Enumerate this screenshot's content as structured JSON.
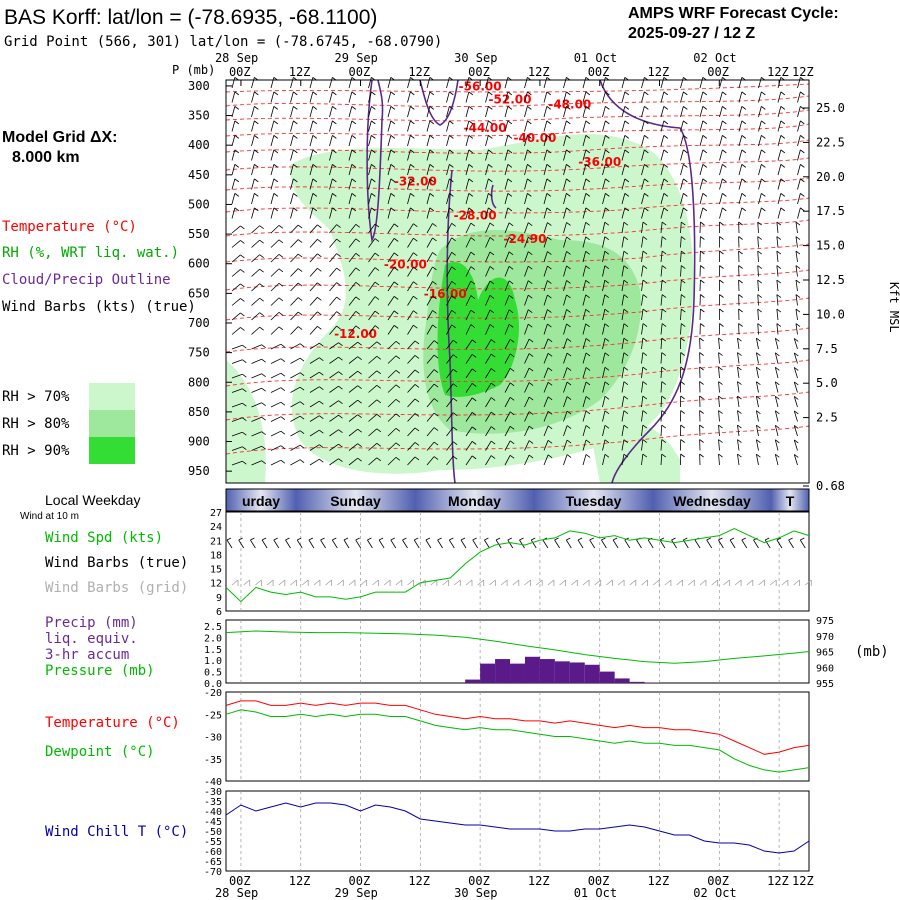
{
  "header": {
    "station_title": "BAS Korff:  lat/lon = (-78.6935, -68.1100)",
    "grid_point": "Grid Point (566, 301) lat/lon = (-78.6745, -68.0790)",
    "forecast_label": "AMPS WRF Forecast Cycle:",
    "forecast_cycle": "2025-09-27 / 12  Z",
    "model_grid_line1": "Model Grid ΔX:",
    "model_grid_line2": "8.000 km"
  },
  "legend": {
    "temperature": "Temperature (°C)",
    "rh": "RH (%, WRT liq. wat.)",
    "cloud": "Cloud/Precip Outline",
    "wind": "Wind Barbs (kts) (true)",
    "rh70": "RH > 70%",
    "rh80": "RH > 80%",
    "rh90": "RH > 90%",
    "local_weekday": "Local Weekday",
    "wind_at_10m": "Wind at 10 m"
  },
  "colors": {
    "temperature": "#ff0000",
    "rh70": "#ccf7cc",
    "rh80": "#9de89d",
    "rh90": "#33dd33",
    "cloud_outline": "#5a2a8a",
    "wind_barb": "#000000",
    "wind_barb_grid": "#a0a0a0",
    "wind_speed": "#00bb00",
    "precip": "#5a1a8a",
    "pressure": "#00bb00",
    "dewpoint": "#00bb00",
    "wind_chill": "#0000aa"
  },
  "time_axis": {
    "top_dates": [
      "28 Sep",
      "29 Sep",
      "30 Sep",
      "01 Oct",
      "02 Oct"
    ],
    "ticks": [
      "00Z",
      "12Z",
      "00Z",
      "12Z",
      "00Z",
      "12Z",
      "00Z",
      "12Z",
      "00Z",
      "12Z"
    ],
    "weekdays": [
      "urday",
      "Sunday",
      "Monday",
      "Tuesday",
      "Wednesday",
      "T"
    ]
  },
  "chart_data": [
    {
      "type": "heatmap",
      "panel": "cross-section",
      "ylabel_left": "P (mb)",
      "ylabel_right": "Kft MSL",
      "pressure_ticks": [
        300,
        350,
        400,
        450,
        500,
        550,
        600,
        650,
        700,
        750,
        800,
        850,
        900,
        950
      ],
      "height_ticks": [
        "25.0",
        "22.5",
        "20.0",
        "17.5",
        "15.0",
        "12.5",
        "10.0",
        "7.5",
        "5.0",
        "2.5",
        "0.68"
      ],
      "temperature_labels": [
        {
          "text": "-56.00",
          "hour": 51,
          "p": 308
        },
        {
          "text": "-52.00",
          "hour": 57,
          "p": 330
        },
        {
          "text": "-48.00",
          "hour": 69,
          "p": 338
        },
        {
          "text": "-44.00",
          "hour": 52,
          "p": 378
        },
        {
          "text": "-40.00",
          "hour": 62,
          "p": 395
        },
        {
          "text": "-36.00",
          "hour": 75,
          "p": 435
        },
        {
          "text": "-32.00",
          "hour": 38,
          "p": 468
        },
        {
          "text": "-28.00",
          "hour": 50,
          "p": 525
        },
        {
          "text": "-24.90",
          "hour": 60,
          "p": 565
        },
        {
          "text": "-20.00",
          "hour": 36,
          "p": 608
        },
        {
          "text": "-16.00",
          "hour": 44,
          "p": 658
        },
        {
          "text": "-12.00",
          "hour": 26,
          "p": 725
        }
      ]
    },
    {
      "type": "line",
      "panel": "wind",
      "series_labels": [
        "Wind Spd (kts)",
        "Wind Barbs (true)",
        "Wind Barbs (grid)"
      ],
      "yticks": [
        6,
        9,
        12,
        15,
        18,
        21,
        24,
        27
      ],
      "ylim": [
        6,
        27
      ],
      "hours": [
        0,
        3,
        6,
        9,
        12,
        15,
        18,
        21,
        24,
        27,
        30,
        33,
        36,
        39,
        42,
        45,
        48,
        51,
        54,
        57,
        60,
        63,
        66,
        69,
        72,
        75,
        78,
        81,
        84,
        87,
        90,
        93,
        96,
        99,
        102,
        105,
        108,
        111,
        114,
        117
      ],
      "values": [
        11,
        8,
        11,
        10,
        9.5,
        10,
        9,
        9,
        8.5,
        9,
        10,
        10,
        10,
        12,
        12.5,
        13,
        16,
        18.5,
        20,
        20.5,
        20,
        21,
        21.5,
        23,
        22.5,
        21.5,
        22,
        21,
        21.5,
        21,
        20.5,
        21,
        21.5,
        22,
        23.5,
        22,
        20.5,
        21.5,
        23,
        22
      ]
    },
    {
      "type": "bar",
      "panel": "precip-pressure",
      "series_labels": [
        "Precip (mm)",
        "liq. equiv.",
        "3-hr accum",
        "Pressure (mb)"
      ],
      "y_left_ticks": [
        "0.0",
        "0.5",
        "1.0",
        "1.5",
        "2.0",
        "2.5"
      ],
      "y_right_ticks": [
        955,
        960,
        965,
        970,
        975
      ],
      "ylabel_right": "(mb)",
      "precip_hours": [
        48,
        51,
        54,
        57,
        60,
        63,
        66,
        69,
        72,
        75,
        78,
        81,
        84
      ],
      "precip_values": [
        0.15,
        0.85,
        1.05,
        0.85,
        1.15,
        1.05,
        0.95,
        0.9,
        0.8,
        0.5,
        0.2,
        0.05,
        0.02
      ],
      "pressure_hours": [
        0,
        6,
        12,
        18,
        24,
        30,
        36,
        42,
        48,
        54,
        60,
        66,
        72,
        78,
        84,
        90,
        96,
        102,
        108,
        114,
        117
      ],
      "pressure_values": [
        971,
        971.5,
        971.2,
        971,
        971,
        970.8,
        970.6,
        970.2,
        969.5,
        968.3,
        966.8,
        965.5,
        964,
        962.8,
        961.8,
        961.3,
        961.8,
        962.8,
        963.6,
        964.5,
        965
      ]
    },
    {
      "type": "line",
      "panel": "temperature",
      "series_labels": [
        "Temperature (°C)",
        "Dewpoint (°C)"
      ],
      "yticks": [
        -20,
        -25,
        -30,
        -35,
        -40
      ],
      "ylim": [
        -40,
        -20
      ],
      "hours": [
        0,
        3,
        6,
        9,
        12,
        15,
        18,
        21,
        24,
        27,
        30,
        33,
        36,
        39,
        42,
        45,
        48,
        51,
        54,
        57,
        60,
        63,
        66,
        69,
        72,
        75,
        78,
        81,
        84,
        87,
        90,
        93,
        96,
        99,
        102,
        105,
        108,
        111,
        114,
        117
      ],
      "temperature": [
        -23,
        -22,
        -22,
        -23,
        -23,
        -22.5,
        -23,
        -22.5,
        -23,
        -22.5,
        -22.5,
        -23,
        -23,
        -24,
        -25,
        -25.5,
        -26,
        -25.5,
        -26,
        -26,
        -26.5,
        -26.5,
        -27,
        -26.5,
        -27,
        -27.5,
        -28,
        -27.5,
        -28,
        -28,
        -28.5,
        -28.5,
        -29,
        -29.5,
        -31,
        -32.5,
        -34,
        -33.5,
        -32.5,
        -32
      ],
      "dewpoint": [
        -25,
        -24,
        -24.5,
        -25.5,
        -25.5,
        -25,
        -25.5,
        -25,
        -25.5,
        -25,
        -25,
        -25.5,
        -25.5,
        -26.5,
        -27.5,
        -28,
        -28.5,
        -28,
        -28.5,
        -28.5,
        -29,
        -29.5,
        -30,
        -30,
        -30.5,
        -31,
        -31.5,
        -31,
        -31.5,
        -31.5,
        -32,
        -32,
        -32.5,
        -33,
        -35,
        -36.5,
        -37.5,
        -38,
        -37.5,
        -37
      ]
    },
    {
      "type": "line",
      "panel": "wind-chill",
      "series_labels": [
        "Wind Chill T (°C)"
      ],
      "yticks": [
        -30,
        -35,
        -40,
        -45,
        -50,
        -55,
        -60,
        -65,
        -70
      ],
      "ylim": [
        -70,
        -30
      ],
      "hours": [
        0,
        3,
        6,
        9,
        12,
        15,
        18,
        21,
        24,
        27,
        30,
        33,
        36,
        39,
        42,
        45,
        48,
        51,
        54,
        57,
        60,
        63,
        66,
        69,
        72,
        75,
        78,
        81,
        84,
        87,
        90,
        93,
        96,
        99,
        102,
        105,
        108,
        111,
        114,
        117
      ],
      "values": [
        -42,
        -37,
        -40,
        -38,
        -36,
        -38,
        -36,
        -36,
        -37,
        -40,
        -37,
        -38,
        -40,
        -44,
        -45,
        -46,
        -47,
        -47,
        -48,
        -49,
        -49,
        -49,
        -50,
        -50,
        -49,
        -49,
        -48,
        -47,
        -48,
        -50,
        -52,
        -52,
        -55,
        -56,
        -56,
        -57,
        -60,
        -61,
        -60,
        -55
      ]
    }
  ]
}
